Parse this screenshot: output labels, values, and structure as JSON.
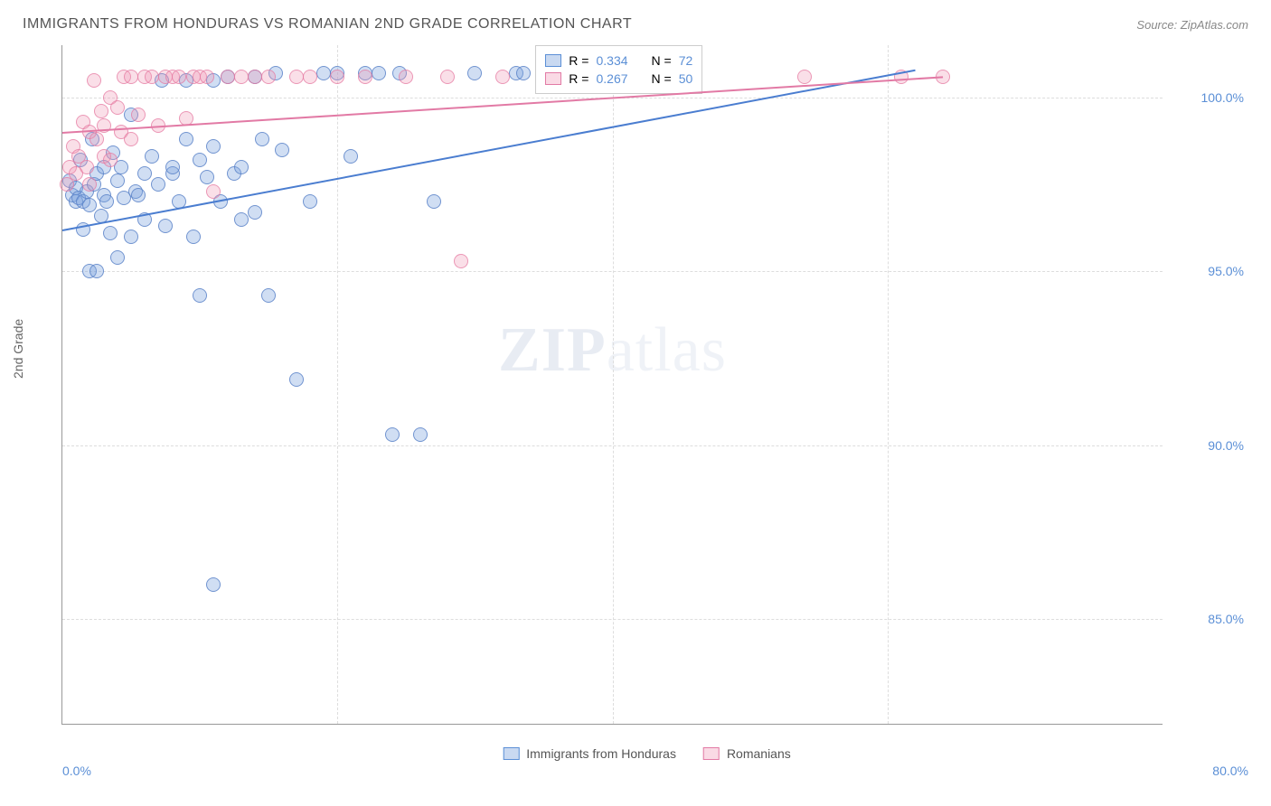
{
  "header": {
    "title": "IMMIGRANTS FROM HONDURAS VS ROMANIAN 2ND GRADE CORRELATION CHART",
    "source_label": "Source:",
    "source_value": "ZipAtlas.com"
  },
  "chart": {
    "type": "scatter",
    "ylabel": "2nd Grade",
    "xlim": [
      0,
      80
    ],
    "ylim": [
      82,
      101.5
    ],
    "x_ticks": [
      {
        "v": 0,
        "l": "0.0%"
      },
      {
        "v": 80,
        "l": "80.0%"
      }
    ],
    "y_ticks": [
      {
        "v": 85,
        "l": "85.0%"
      },
      {
        "v": 90,
        "l": "90.0%"
      },
      {
        "v": 95,
        "l": "95.0%"
      },
      {
        "v": 100,
        "l": "100.0%"
      }
    ],
    "x_grid": [
      20,
      40,
      60
    ],
    "grid_color": "#dddddd",
    "background_color": "#ffffff",
    "axis_color": "#999999",
    "tick_font_color": "#5b8fd6",
    "tick_fontsize": 14,
    "label_fontsize": 14,
    "point_radius": 8,
    "watermark": "ZIPatlas",
    "series": [
      {
        "name": "Immigrants from Honduras",
        "color_fill": "rgba(120,160,220,0.35)",
        "color_stroke": "#5b8fd6",
        "r": 0.334,
        "n": 72,
        "trend": {
          "x1": 0,
          "y1": 96.2,
          "x2": 62,
          "y2": 100.8
        },
        "points": [
          [
            0.5,
            97.6
          ],
          [
            0.7,
            97.2
          ],
          [
            1.0,
            97.0
          ],
          [
            1.0,
            97.4
          ],
          [
            1.2,
            97.1
          ],
          [
            1.3,
            98.2
          ],
          [
            1.5,
            97.0
          ],
          [
            1.5,
            96.2
          ],
          [
            1.8,
            97.3
          ],
          [
            2.0,
            96.9
          ],
          [
            2.0,
            95.0
          ],
          [
            2.2,
            98.8
          ],
          [
            2.3,
            97.5
          ],
          [
            2.5,
            95.0
          ],
          [
            2.5,
            97.8
          ],
          [
            2.8,
            96.6
          ],
          [
            3.0,
            97.2
          ],
          [
            3.0,
            98.0
          ],
          [
            3.2,
            97.0
          ],
          [
            3.5,
            96.1
          ],
          [
            3.7,
            98.4
          ],
          [
            4.0,
            97.6
          ],
          [
            4.0,
            95.4
          ],
          [
            4.3,
            98.0
          ],
          [
            4.5,
            97.1
          ],
          [
            5.0,
            96.0
          ],
          [
            5.0,
            99.5
          ],
          [
            5.3,
            97.3
          ],
          [
            5.5,
            97.2
          ],
          [
            6.0,
            97.8
          ],
          [
            6.0,
            96.5
          ],
          [
            6.5,
            98.3
          ],
          [
            7.0,
            97.5
          ],
          [
            7.2,
            100.5
          ],
          [
            7.5,
            96.3
          ],
          [
            8.0,
            97.8
          ],
          [
            8.0,
            98.0
          ],
          [
            8.5,
            97.0
          ],
          [
            9.0,
            98.8
          ],
          [
            9.0,
            100.5
          ],
          [
            9.5,
            96.0
          ],
          [
            10.0,
            98.2
          ],
          [
            10.0,
            94.3
          ],
          [
            10.5,
            97.7
          ],
          [
            11.0,
            100.5
          ],
          [
            11.0,
            98.6
          ],
          [
            11.5,
            97.0
          ],
          [
            12.0,
            100.6
          ],
          [
            12.5,
            97.8
          ],
          [
            13.0,
            98.0
          ],
          [
            13.0,
            96.5
          ],
          [
            14.0,
            100.6
          ],
          [
            14.0,
            96.7
          ],
          [
            14.5,
            98.8
          ],
          [
            15.0,
            94.3
          ],
          [
            15.5,
            100.7
          ],
          [
            16.0,
            98.5
          ],
          [
            17.0,
            91.9
          ],
          [
            18.0,
            97.0
          ],
          [
            19.0,
            100.7
          ],
          [
            20.0,
            100.7
          ],
          [
            21.0,
            98.3
          ],
          [
            22.0,
            100.7
          ],
          [
            23.0,
            100.7
          ],
          [
            24.0,
            90.3
          ],
          [
            24.5,
            100.7
          ],
          [
            26.0,
            90.3
          ],
          [
            27.0,
            97.0
          ],
          [
            30.0,
            100.7
          ],
          [
            33.0,
            100.7
          ],
          [
            11.0,
            86.0
          ],
          [
            33.5,
            100.7
          ]
        ]
      },
      {
        "name": "Romanians",
        "color_fill": "rgba(240,150,180,0.3)",
        "color_stroke": "#e27aa5",
        "r": 0.267,
        "n": 50,
        "trend": {
          "x1": 0,
          "y1": 99.0,
          "x2": 64,
          "y2": 100.6
        },
        "points": [
          [
            0.3,
            97.5
          ],
          [
            0.5,
            98.0
          ],
          [
            0.8,
            98.6
          ],
          [
            1.0,
            97.8
          ],
          [
            1.2,
            98.3
          ],
          [
            1.5,
            99.3
          ],
          [
            1.8,
            98.0
          ],
          [
            2.0,
            99.0
          ],
          [
            2.0,
            97.5
          ],
          [
            2.3,
            100.5
          ],
          [
            2.5,
            98.8
          ],
          [
            2.8,
            99.6
          ],
          [
            3.0,
            99.2
          ],
          [
            3.0,
            98.3
          ],
          [
            3.5,
            100.0
          ],
          [
            3.5,
            98.2
          ],
          [
            4.0,
            99.7
          ],
          [
            4.3,
            99.0
          ],
          [
            4.5,
            100.6
          ],
          [
            5.0,
            100.6
          ],
          [
            5.0,
            98.8
          ],
          [
            5.5,
            99.5
          ],
          [
            6.0,
            100.6
          ],
          [
            6.5,
            100.6
          ],
          [
            7.0,
            99.2
          ],
          [
            7.5,
            100.6
          ],
          [
            8.0,
            100.6
          ],
          [
            8.5,
            100.6
          ],
          [
            9.0,
            99.4
          ],
          [
            9.5,
            100.6
          ],
          [
            10.0,
            100.6
          ],
          [
            10.5,
            100.6
          ],
          [
            11.0,
            97.3
          ],
          [
            12.0,
            100.6
          ],
          [
            13.0,
            100.6
          ],
          [
            14.0,
            100.6
          ],
          [
            15.0,
            100.6
          ],
          [
            17.0,
            100.6
          ],
          [
            18.0,
            100.6
          ],
          [
            20.0,
            100.6
          ],
          [
            22.0,
            100.6
          ],
          [
            25.0,
            100.6
          ],
          [
            28.0,
            100.6
          ],
          [
            29.0,
            95.3
          ],
          [
            32.0,
            100.6
          ],
          [
            35.0,
            100.6
          ],
          [
            38.0,
            100.6
          ],
          [
            54.0,
            100.6
          ],
          [
            61.0,
            100.6
          ],
          [
            64.0,
            100.6
          ]
        ]
      }
    ],
    "legend_box": {
      "left_pct": 43,
      "top_pct": 0,
      "rows": [
        {
          "swatch": "blue",
          "r_label": "R = ",
          "r": "0.334",
          "n_label": "N = ",
          "n": "72"
        },
        {
          "swatch": "pink",
          "r_label": "R = ",
          "r": "0.267",
          "n_label": "N = ",
          "n": "50"
        }
      ]
    },
    "bottom_legend": [
      {
        "swatch": "blue",
        "label": "Immigrants from Honduras"
      },
      {
        "swatch": "pink",
        "label": "Romanians"
      }
    ]
  }
}
